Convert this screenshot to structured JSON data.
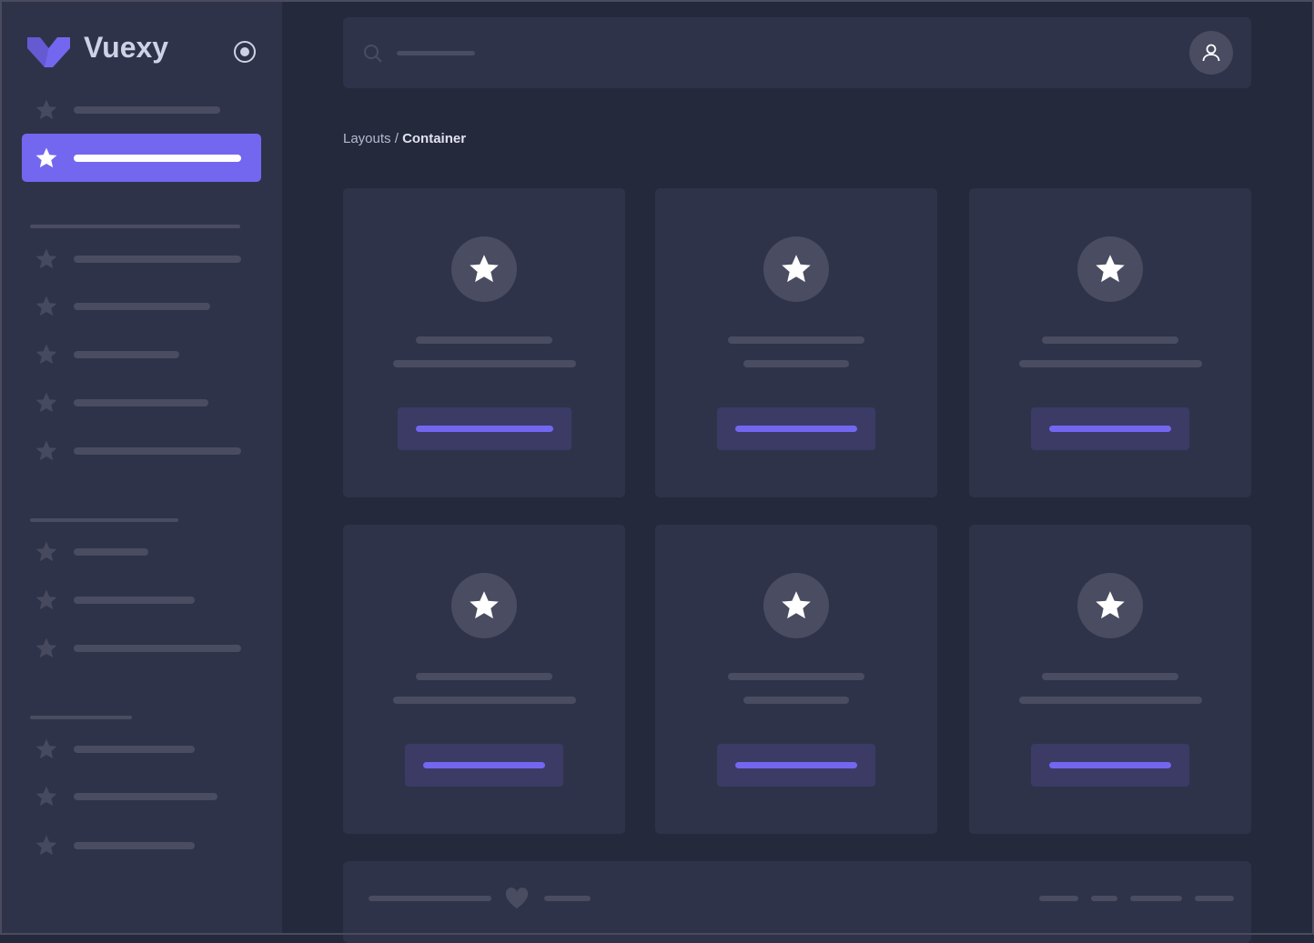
{
  "brand": {
    "name": "Vuexy",
    "color": "#7367f0"
  },
  "sidebar": {
    "toggle_icon": "radio-circle-icon",
    "item_icon": "star-icon",
    "active_index": 1
  },
  "navbar": {
    "search_icon": "search-icon",
    "avatar_icon": "user-icon"
  },
  "breadcrumb": {
    "parent": "Layouts",
    "separator": " / ",
    "current": "Container"
  },
  "cards": {
    "count": 6,
    "icon": "star-icon"
  },
  "footer": {
    "icon": "heart-icon"
  },
  "colors": {
    "background": "#25293c",
    "surface": "#2f3349",
    "placeholder": "#4a4c61",
    "primary": "#7367f0",
    "button_bg": "#3b3b66"
  }
}
